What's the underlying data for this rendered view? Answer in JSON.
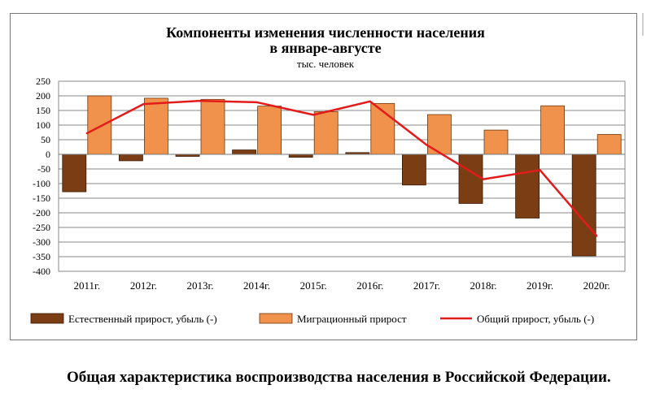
{
  "chart_data": {
    "type": "bar",
    "title": "Компоненты изменения численности населения",
    "title_line2": "в январе-августе",
    "subtitle": "тыс. человек",
    "categories": [
      "2011г.",
      "2012г.",
      "2013г.",
      "2014г.",
      "2015г.",
      "2016г.",
      "2017г.",
      "2018г.",
      "2019г.",
      "2020г."
    ],
    "ylim": [
      -400,
      250
    ],
    "yticks": [
      250,
      200,
      150,
      100,
      50,
      0,
      -50,
      -100,
      -150,
      -200,
      -250,
      -300,
      -350,
      -400
    ],
    "grid": true,
    "legend_position": "bottom",
    "series": [
      {
        "name": "Естественный прирост, убыль (-)",
        "type": "bar",
        "color": "#7b3d13",
        "values": [
          -128,
          -22,
          -7,
          15,
          -10,
          6,
          -105,
          -168,
          -218,
          -347
        ]
      },
      {
        "name": "Миграционный прирост",
        "type": "bar",
        "color": "#f0924b",
        "values": [
          200,
          192,
          188,
          165,
          146,
          174,
          136,
          83,
          166,
          68
        ]
      },
      {
        "name": "Общий прирост, убыль (-)",
        "type": "line",
        "color": "#e21b1b",
        "values": [
          72,
          172,
          183,
          178,
          135,
          181,
          32,
          -85,
          -54,
          -279
        ]
      }
    ]
  },
  "caption": "Общая характеристика воспроизводства населения в Российской Федерации."
}
